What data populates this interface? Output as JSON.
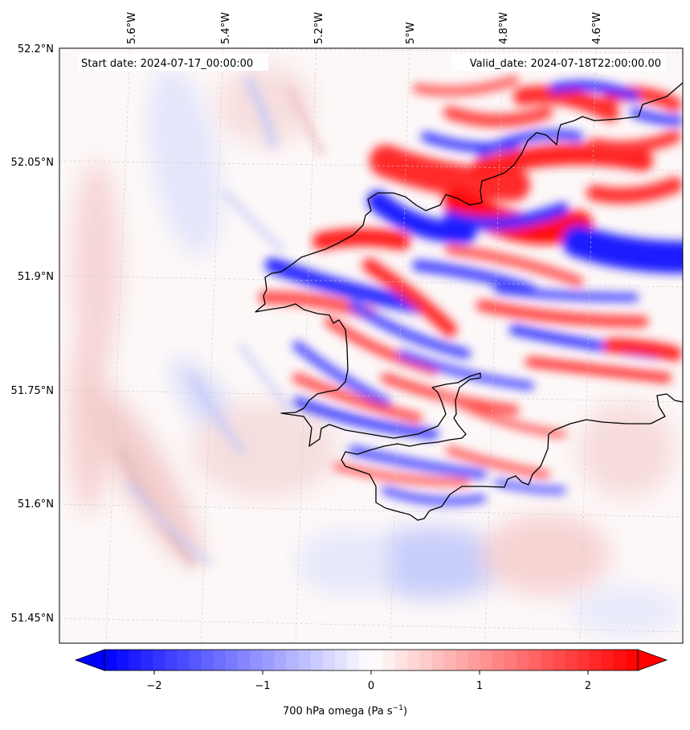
{
  "annotations": {
    "start_date": "Start date: 2024-07-17_00:00:00",
    "valid_date": "Valid_date: 2024-07-18T22:00:00.00"
  },
  "map": {
    "lon_ticks": [
      "5.6°W",
      "5.4°W",
      "5.2°W",
      "5°W",
      "4.8°W",
      "4.6°W"
    ],
    "lat_ticks": [
      "52.2°N",
      "52.05°N",
      "51.9°N",
      "51.75°N",
      "51.6°N",
      "51.45°N"
    ],
    "field_colors": {
      "negative": "#0000ff",
      "neutral": "#ffffff",
      "positive": "#ff0000"
    }
  },
  "colorbar": {
    "ticks": [
      "−2",
      "−1",
      "0",
      "1",
      "2"
    ],
    "label": "700 hPa omega (Pa s",
    "label_unit_exponent": "−1",
    "label_close": ")",
    "vmin": -2.75,
    "vmax": 2.75
  }
}
